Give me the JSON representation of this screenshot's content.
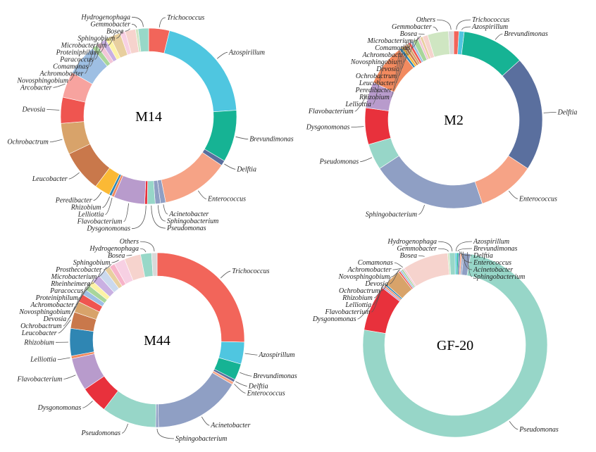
{
  "colors": {
    "Trichococcus": "#f2655a",
    "Azospirillum": "#4fc6e0",
    "Brevundimonas": "#16b394",
    "Delftia": "#5a6f9e",
    "Enterococcus": "#f6a386",
    "Acinetobacter": "#8f9fc4",
    "Sphingobacterium": "#8f9fc4",
    "Pseudomonas": "#97d6c8",
    "Dysgonomonas": "#e8313c",
    "Flavobacterium": "#b89bcc",
    "Lelliottia": "#f28a5f",
    "Rhizobium": "#2f86b3",
    "Peredibacter": "#fbb935",
    "Leucobacter": "#c9784b",
    "Ochrobactrum": "#d8a36a",
    "Devosia": "#ef5550",
    "Arcobacter": "#f7a39f",
    "Novosphingobium": "#9ebfe3",
    "Achromobacter": "#a8d69a",
    "Comamonas": "#f2c6d7",
    "Paracoccus": "#c9b0e2",
    "Proteiniphilum": "#fdf3a6",
    "Microbacterium": "#e8cf9f",
    "Sphingobium": "#f7d0e3",
    "Bosea": "#f6d3cd",
    "Gemmobacter": "#cfe6c2",
    "Hydrogenophaga": "#98d8c8",
    "Rheinheimera": "#cbd9ee",
    "Prosthecobacter": "#f7b3c9",
    "Others": "#d9d9d9"
  },
  "chart_data": [
    {
      "type": "pie",
      "center_label": "M14",
      "slices": [
        {
          "label": "Trichococcus",
          "value": 4
        },
        {
          "label": "Azospirillum",
          "value": 21
        },
        {
          "label": "Brevundimonas",
          "value": 10
        },
        {
          "label": "Delftia",
          "value": 1
        },
        {
          "label": "Enterococcus",
          "value": 13
        },
        {
          "label": "Acinetobacter",
          "value": 1
        },
        {
          "label": "Sphingobacterium",
          "value": 1
        },
        {
          "label": "Pseudomonas",
          "value": 1.5
        },
        {
          "label": "Dysgonomonas",
          "value": 0.5
        },
        {
          "label": "Flavobacterium",
          "value": 6
        },
        {
          "label": "Lelliottia",
          "value": 0.5
        },
        {
          "label": "Rhizobium",
          "value": 0.5
        },
        {
          "label": "Peredibacter",
          "value": 3
        },
        {
          "label": "Leucobacter",
          "value": 8
        },
        {
          "label": "Ochrobactrum",
          "value": 6
        },
        {
          "label": "Devosia",
          "value": 5
        },
        {
          "label": "Arcobacter",
          "value": 5
        },
        {
          "label": "Novosphingobium",
          "value": 6
        },
        {
          "label": "Achromobacter",
          "value": 1
        },
        {
          "label": "Comamonas",
          "value": 1
        },
        {
          "label": "Paracoccus",
          "value": 1
        },
        {
          "label": "Proteiniphilum",
          "value": 1
        },
        {
          "label": "Microbacterium",
          "value": 2
        },
        {
          "label": "Sphingobium",
          "value": 1
        },
        {
          "label": "Bosea",
          "value": 2
        },
        {
          "label": "Gemmobacter",
          "value": 0.5
        },
        {
          "label": "Hydrogenophaga",
          "value": 2
        }
      ]
    },
    {
      "type": "pie",
      "center_label": "M2",
      "slices": [
        {
          "label": "Trichococcus",
          "value": 1
        },
        {
          "label": "Azospirillum",
          "value": 1
        },
        {
          "label": "Brevundimonas",
          "value": 12
        },
        {
          "label": "Delftia",
          "value": 22
        },
        {
          "label": "Enterococcus",
          "value": 11
        },
        {
          "label": "Sphingobacterium",
          "value": 22
        },
        {
          "label": "Pseudomonas",
          "value": 5
        },
        {
          "label": "Dysgonomonas",
          "value": 7
        },
        {
          "label": "Flavobacterium",
          "value": 5
        },
        {
          "label": "Lelliottia",
          "value": 8
        },
        {
          "label": "Rhizobium",
          "value": 0.5
        },
        {
          "label": "Peredibacter",
          "value": 0.5
        },
        {
          "label": "Leucobacter",
          "value": 0.5
        },
        {
          "label": "Ochrobactrum",
          "value": 0.5
        },
        {
          "label": "Devosia",
          "value": 0.5
        },
        {
          "label": "Novosphingobium",
          "value": 0.5
        },
        {
          "label": "Achromobacter",
          "value": 1
        },
        {
          "label": "Comamonas",
          "value": 0.5
        },
        {
          "label": "Microbacterium",
          "value": 0.5
        },
        {
          "label": "Bosea",
          "value": 1
        },
        {
          "label": "Gemmobacter",
          "value": 4
        },
        {
          "label": "Others",
          "value": 1
        }
      ]
    },
    {
      "type": "pie",
      "center_label": "M44",
      "slices": [
        {
          "label": "Trichococcus",
          "value": 25
        },
        {
          "label": "Azospirillum",
          "value": 4
        },
        {
          "label": "Brevundimonas",
          "value": 3
        },
        {
          "label": "Delftia",
          "value": 0.5
        },
        {
          "label": "Enterococcus",
          "value": 0.5
        },
        {
          "label": "Acinetobacter",
          "value": 16
        },
        {
          "label": "Sphingobacterium",
          "value": 0.5
        },
        {
          "label": "Pseudomonas",
          "value": 10
        },
        {
          "label": "Dysgonomonas",
          "value": 5
        },
        {
          "label": "Flavobacterium",
          "value": 6
        },
        {
          "label": "Lelliottia",
          "value": 0.5
        },
        {
          "label": "Rhizobium",
          "value": 5
        },
        {
          "label": "Leucobacter",
          "value": 3
        },
        {
          "label": "Ochrobactrum",
          "value": 2
        },
        {
          "label": "Devosia",
          "value": 1.5
        },
        {
          "label": "Novosphingobium",
          "value": 1
        },
        {
          "label": "Achromobacter",
          "value": 1
        },
        {
          "label": "Proteiniphilum",
          "value": 1
        },
        {
          "label": "Paracoccus",
          "value": 1.5
        },
        {
          "label": "Rheinheimera",
          "value": 1.5
        },
        {
          "label": "Microbacterium",
          "value": 1
        },
        {
          "label": "Prosthecobacter",
          "value": 1
        },
        {
          "label": "Sphingobium",
          "value": 2
        },
        {
          "label": "Bosea",
          "value": 3
        },
        {
          "label": "Hydrogenophaga",
          "value": 2
        },
        {
          "label": "Others",
          "value": 1
        }
      ]
    },
    {
      "type": "pie",
      "center_label": "GF-20",
      "slices": [
        {
          "label": "Azospirillum",
          "value": 0.3
        },
        {
          "label": "Brevundimonas",
          "value": 0.3
        },
        {
          "label": "Delftia",
          "value": 0.3
        },
        {
          "label": "Enterococcus",
          "value": 0.3
        },
        {
          "label": "Acinetobacter",
          "value": 0.3
        },
        {
          "label": "Sphingobacterium",
          "value": 1.2
        },
        {
          "label": "Pseudomonas",
          "value": 75
        },
        {
          "label": "Dysgonomonas",
          "value": 8
        },
        {
          "label": "Flavobacterium",
          "value": 0.3
        },
        {
          "label": "Lelliottia",
          "value": 0.3
        },
        {
          "label": "Rhizobium",
          "value": 0.3
        },
        {
          "label": "Ochrobactrum",
          "value": 3
        },
        {
          "label": "Devosia",
          "value": 0.3
        },
        {
          "label": "Novosphingobium",
          "value": 0.3
        },
        {
          "label": "Achromobacter",
          "value": 0.3
        },
        {
          "label": "Comamonas",
          "value": 0.3
        },
        {
          "label": "Bosea",
          "value": 8
        },
        {
          "label": "Gemmobacter",
          "value": 0.3
        },
        {
          "label": "Hydrogenophaga",
          "value": 1
        }
      ]
    }
  ]
}
